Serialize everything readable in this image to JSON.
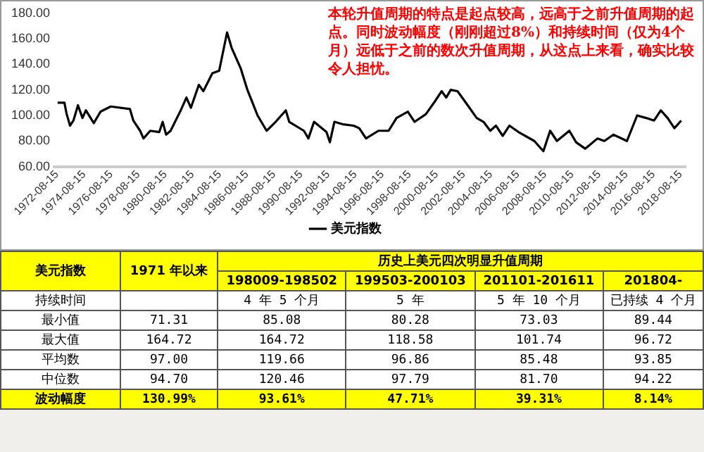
{
  "chart_data": [
    {
      "type": "line",
      "legend": "bottom",
      "marker": "none",
      "line_style": "solid",
      "annotations": [
        "本轮升值周期的特点是起点较高，远高于之前升值周期的起点。同时波动幅度（刚刚超过8%）和持续时间（仅为4个月）远低于之前的数次升值周期，从这点上来看，确实比较令人担忧。"
      ],
      "xlim": [
        "1972-06",
        "2019-01"
      ],
      "xticks": [
        "1972-08-15",
        "1974-08-15",
        "1976-08-15",
        "1978-08-15",
        "1980-08-15",
        "1982-08-15",
        "1984-08-15",
        "1986-08-15",
        "1988-08-15",
        "1990-08-15",
        "1992-08-15",
        "1994-08-15",
        "1996-08-15",
        "1998-08-15",
        "2000-08-15",
        "2002-08-15",
        "2004-08-15",
        "2006-08-15",
        "2008-08-15",
        "2010-08-15",
        "2012-08-15",
        "2014-08-15",
        "2016-08-15",
        "2018-08-15"
      ],
      "ylim": [
        60,
        180
      ],
      "yticks": [
        {
          "value": 60,
          "label": "60.00"
        },
        {
          "value": 80,
          "label": "80.00"
        },
        {
          "value": 100,
          "label": "100.00"
        },
        {
          "value": 120,
          "label": "120.00"
        },
        {
          "value": 140,
          "label": "140.00"
        },
        {
          "value": 160,
          "label": "160.00"
        },
        {
          "value": 180,
          "label": "180.00"
        }
      ],
      "x": [
        "1972-09",
        "1973-03",
        "1973-05",
        "1973-08",
        "1973-11",
        "1974-03",
        "1974-07",
        "1974-10",
        "1975-05",
        "1975-11",
        "1976-08",
        "1978-01",
        "1978-04",
        "1978-10",
        "1979-01",
        "1979-07",
        "1980-03",
        "1980-06",
        "1980-09",
        "1981-01",
        "1981-10",
        "1982-03",
        "1982-07",
        "1983-02",
        "1983-06",
        "1984-02",
        "1984-08",
        "1985-03",
        "1985-07",
        "1986-03",
        "1986-09",
        "1987-06",
        "1988-02",
        "1988-10",
        "1989-07",
        "1989-10",
        "1990-11",
        "1991-03",
        "1991-08",
        "1992-07",
        "1992-10",
        "1993-02",
        "1993-10",
        "1994-07",
        "1994-12",
        "1995-06",
        "1996-05",
        "1997-02",
        "1997-09",
        "1998-07",
        "1999-01",
        "1999-11",
        "2000-07",
        "2001-01",
        "2001-05",
        "2001-09",
        "2002-03",
        "2002-12",
        "2003-08",
        "2004-02",
        "2004-08",
        "2005-01",
        "2005-07",
        "2006-01",
        "2006-09",
        "2007-11",
        "2008-07",
        "2009-01",
        "2009-07",
        "2010-06",
        "2010-12",
        "2011-08",
        "2012-07",
        "2013-01",
        "2013-09",
        "2014-09",
        "2015-06",
        "2016-02",
        "2016-09",
        "2017-03",
        "2017-09",
        "2018-03",
        "2018-09"
      ],
      "series": [
        {
          "name": "美元指数",
          "color": "#000000",
          "values": [
            110,
            110,
            101,
            92,
            96,
            108,
            98,
            104,
            94,
            103,
            107,
            105,
            96,
            88,
            82,
            88,
            87,
            95,
            85,
            88,
            104,
            114,
            106,
            124,
            119,
            133,
            135,
            165,
            153,
            137,
            120,
            100,
            88,
            95,
            104,
            95,
            88,
            82,
            95,
            87,
            79,
            95,
            93,
            92,
            90,
            82,
            88,
            88,
            98,
            103,
            95,
            101,
            111,
            119,
            114,
            120,
            119,
            108,
            98,
            95,
            88,
            92,
            84,
            92,
            87,
            80,
            72,
            88,
            80,
            88,
            79,
            74,
            82,
            80,
            85,
            80,
            100,
            98,
            96,
            104,
            98,
            90,
            96
          ]
        }
      ]
    },
    {
      "type": "other",
      "title": "历史上美元四次明显升值周期",
      "ylabel": "美元指数",
      "categories": [
        "1971 年以来",
        "198009-198502",
        "199503-200103",
        "201101-201611",
        "201804-"
      ],
      "y_categories": [
        "持续时间",
        "最小值",
        "最大值",
        "平均数",
        "中位数",
        "波动幅度"
      ],
      "cell_labels": [
        [
          null,
          "4 年 5 个月",
          "5 年",
          "5 年 10 个月",
          "已持续 4 个月"
        ],
        [
          "71.31",
          "85.08",
          "80.28",
          "73.03",
          "89.44"
        ],
        [
          "164.72",
          "164.72",
          "118.58",
          "101.74",
          "96.72"
        ],
        [
          "97.00",
          "119.66",
          "96.86",
          "85.48",
          "93.85"
        ],
        [
          "94.70",
          "120.46",
          "97.79",
          "81.70",
          "94.22"
        ],
        [
          "130.99%",
          "93.61%",
          "47.71%",
          "39.31%",
          "8.14%"
        ]
      ]
    }
  ]
}
